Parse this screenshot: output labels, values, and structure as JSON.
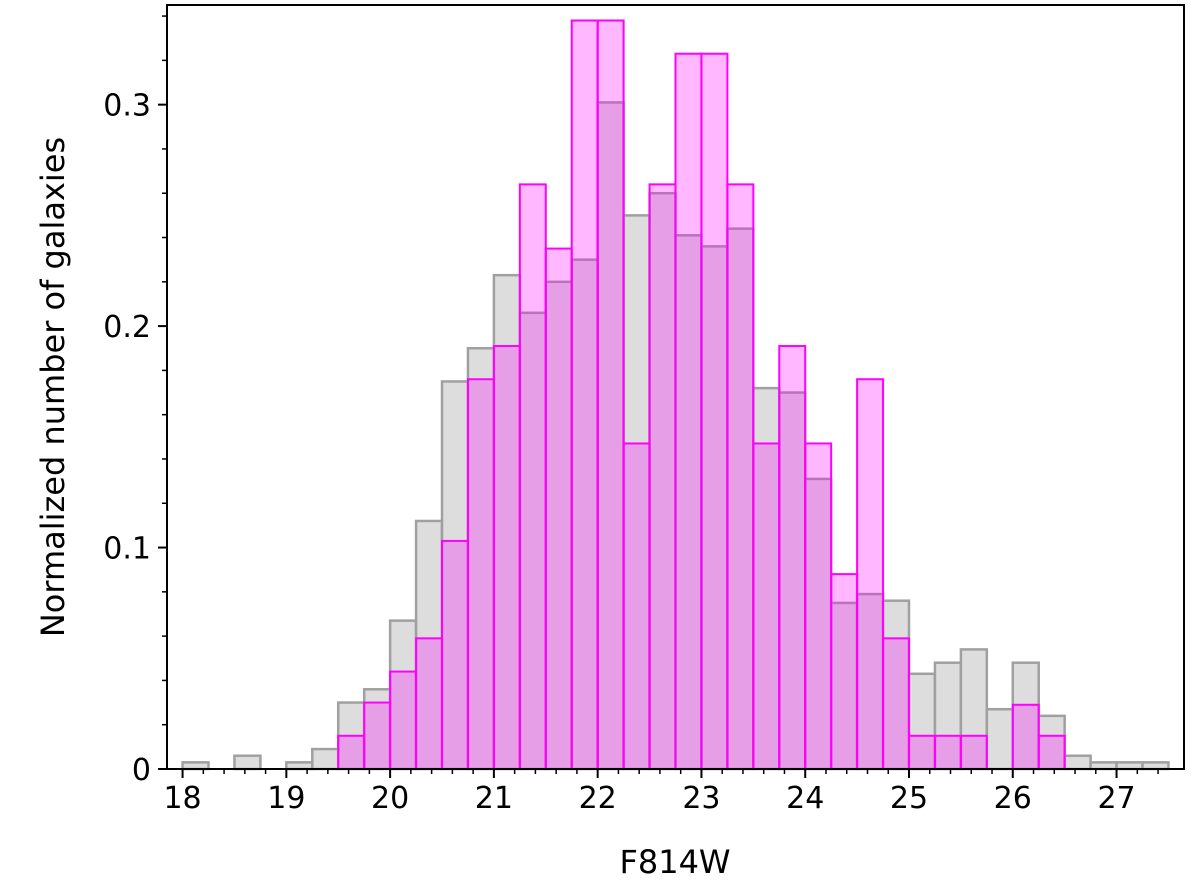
{
  "chart_data": {
    "type": "bar",
    "title": "",
    "xlabel": "F814W",
    "ylabel": "Normalized number of galaxies",
    "xlim": [
      17.85,
      27.65
    ],
    "ylim": [
      0,
      0.345
    ],
    "xticks": [
      "18",
      "19",
      "20",
      "21",
      "22",
      "23",
      "24",
      "25",
      "26",
      "27"
    ],
    "yticks": [
      "0",
      "0.1",
      "0.2",
      "0.3"
    ],
    "bin_edges": [
      18.0,
      18.25,
      18.5,
      18.75,
      19.0,
      19.25,
      19.5,
      19.75,
      20.0,
      20.25,
      20.5,
      20.75,
      21.0,
      21.25,
      21.5,
      21.75,
      22.0,
      22.25,
      22.5,
      22.75,
      23.0,
      23.25,
      23.5,
      23.75,
      24.0,
      24.25,
      24.5,
      24.75,
      25.0,
      25.25,
      25.5,
      25.75,
      26.0,
      26.25,
      26.5,
      26.75,
      27.0,
      27.25,
      27.5
    ],
    "series": [
      {
        "values": [
          0.003,
          0.0,
          0.006,
          0.0,
          0.003,
          0.009,
          0.03,
          0.036,
          0.067,
          0.112,
          0.175,
          0.19,
          0.223,
          0.206,
          0.22,
          0.23,
          0.301,
          0.25,
          0.26,
          0.241,
          0.236,
          0.244,
          0.172,
          0.17,
          0.131,
          0.075,
          0.079,
          0.076,
          0.043,
          0.048,
          0.054,
          0.027,
          0.048,
          0.024,
          0.006,
          0.003,
          0.003,
          0.003
        ],
        "fill": "#d9d9d9",
        "stroke": "#a0a0a0"
      },
      {
        "values": [
          0,
          0,
          0,
          0,
          0,
          0,
          0.015,
          0.03,
          0.044,
          0.059,
          0.103,
          0.176,
          0.191,
          0.264,
          0.235,
          0.338,
          0.338,
          0.147,
          0.264,
          0.323,
          0.323,
          0.264,
          0.147,
          0.191,
          0.147,
          0.088,
          0.176,
          0.059,
          0.015,
          0.015,
          0.015,
          0.0,
          0.029,
          0.015,
          0,
          0,
          0,
          0
        ],
        "fill": "#ff00ff",
        "stroke": "#ff00ff"
      }
    ]
  }
}
